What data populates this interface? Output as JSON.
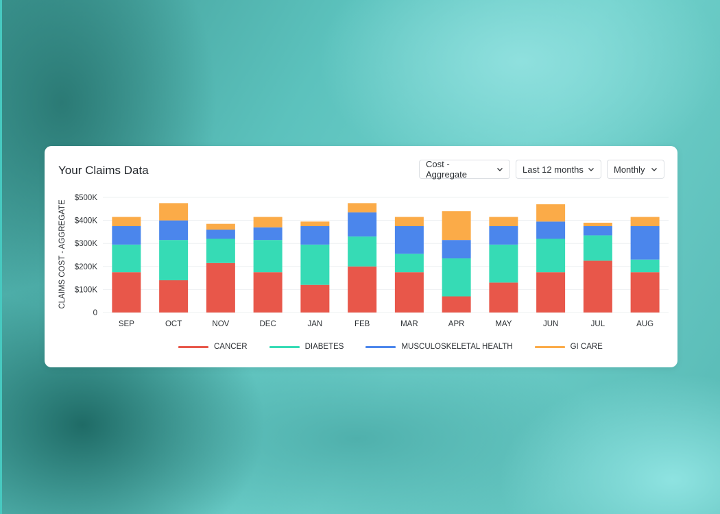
{
  "card": {
    "title": "Your Claims Data"
  },
  "filters": [
    {
      "label": "Cost - Aggregate",
      "icon": "chevron-down-icon"
    },
    {
      "label": "Last 12 months",
      "icon": "chevron-down-icon"
    },
    {
      "label": "Monthly",
      "icon": "chevron-down-icon"
    }
  ],
  "chart_data": {
    "type": "bar",
    "stacked": true,
    "title": "",
    "xlabel": "",
    "ylabel": "CLAIMS COST - AGGREGATE",
    "ylim": [
      0,
      500000
    ],
    "y_ticks": [
      0,
      100000,
      200000,
      300000,
      400000,
      500000
    ],
    "y_tick_labels": [
      "0",
      "$100K",
      "$200K",
      "$300K",
      "$400K",
      "$500K"
    ],
    "grid": true,
    "legend_position": "bottom",
    "categories": [
      "SEP",
      "OCT",
      "NOV",
      "DEC",
      "JAN",
      "FEB",
      "MAR",
      "APR",
      "MAY",
      "JUN",
      "JUL",
      "AUG"
    ],
    "series": [
      {
        "name": "CANCER",
        "color": "#e8574a",
        "values": [
          175000,
          140000,
          215000,
          175000,
          120000,
          200000,
          175000,
          70000,
          130000,
          175000,
          225000,
          175000
        ]
      },
      {
        "name": "DIABETES",
        "color": "#36dbb5",
        "values": [
          120000,
          175000,
          105000,
          140000,
          175000,
          130000,
          80000,
          165000,
          165000,
          145000,
          110000,
          55000
        ]
      },
      {
        "name": "MUSCULOSKELETAL HEALTH",
        "color": "#4b86ec",
        "values": [
          80000,
          85000,
          40000,
          55000,
          80000,
          105000,
          120000,
          80000,
          80000,
          75000,
          40000,
          145000
        ]
      },
      {
        "name": "GI CARE",
        "color": "#fbab48",
        "values": [
          40000,
          75000,
          25000,
          45000,
          20000,
          40000,
          40000,
          125000,
          40000,
          75000,
          15000,
          40000
        ]
      }
    ]
  }
}
